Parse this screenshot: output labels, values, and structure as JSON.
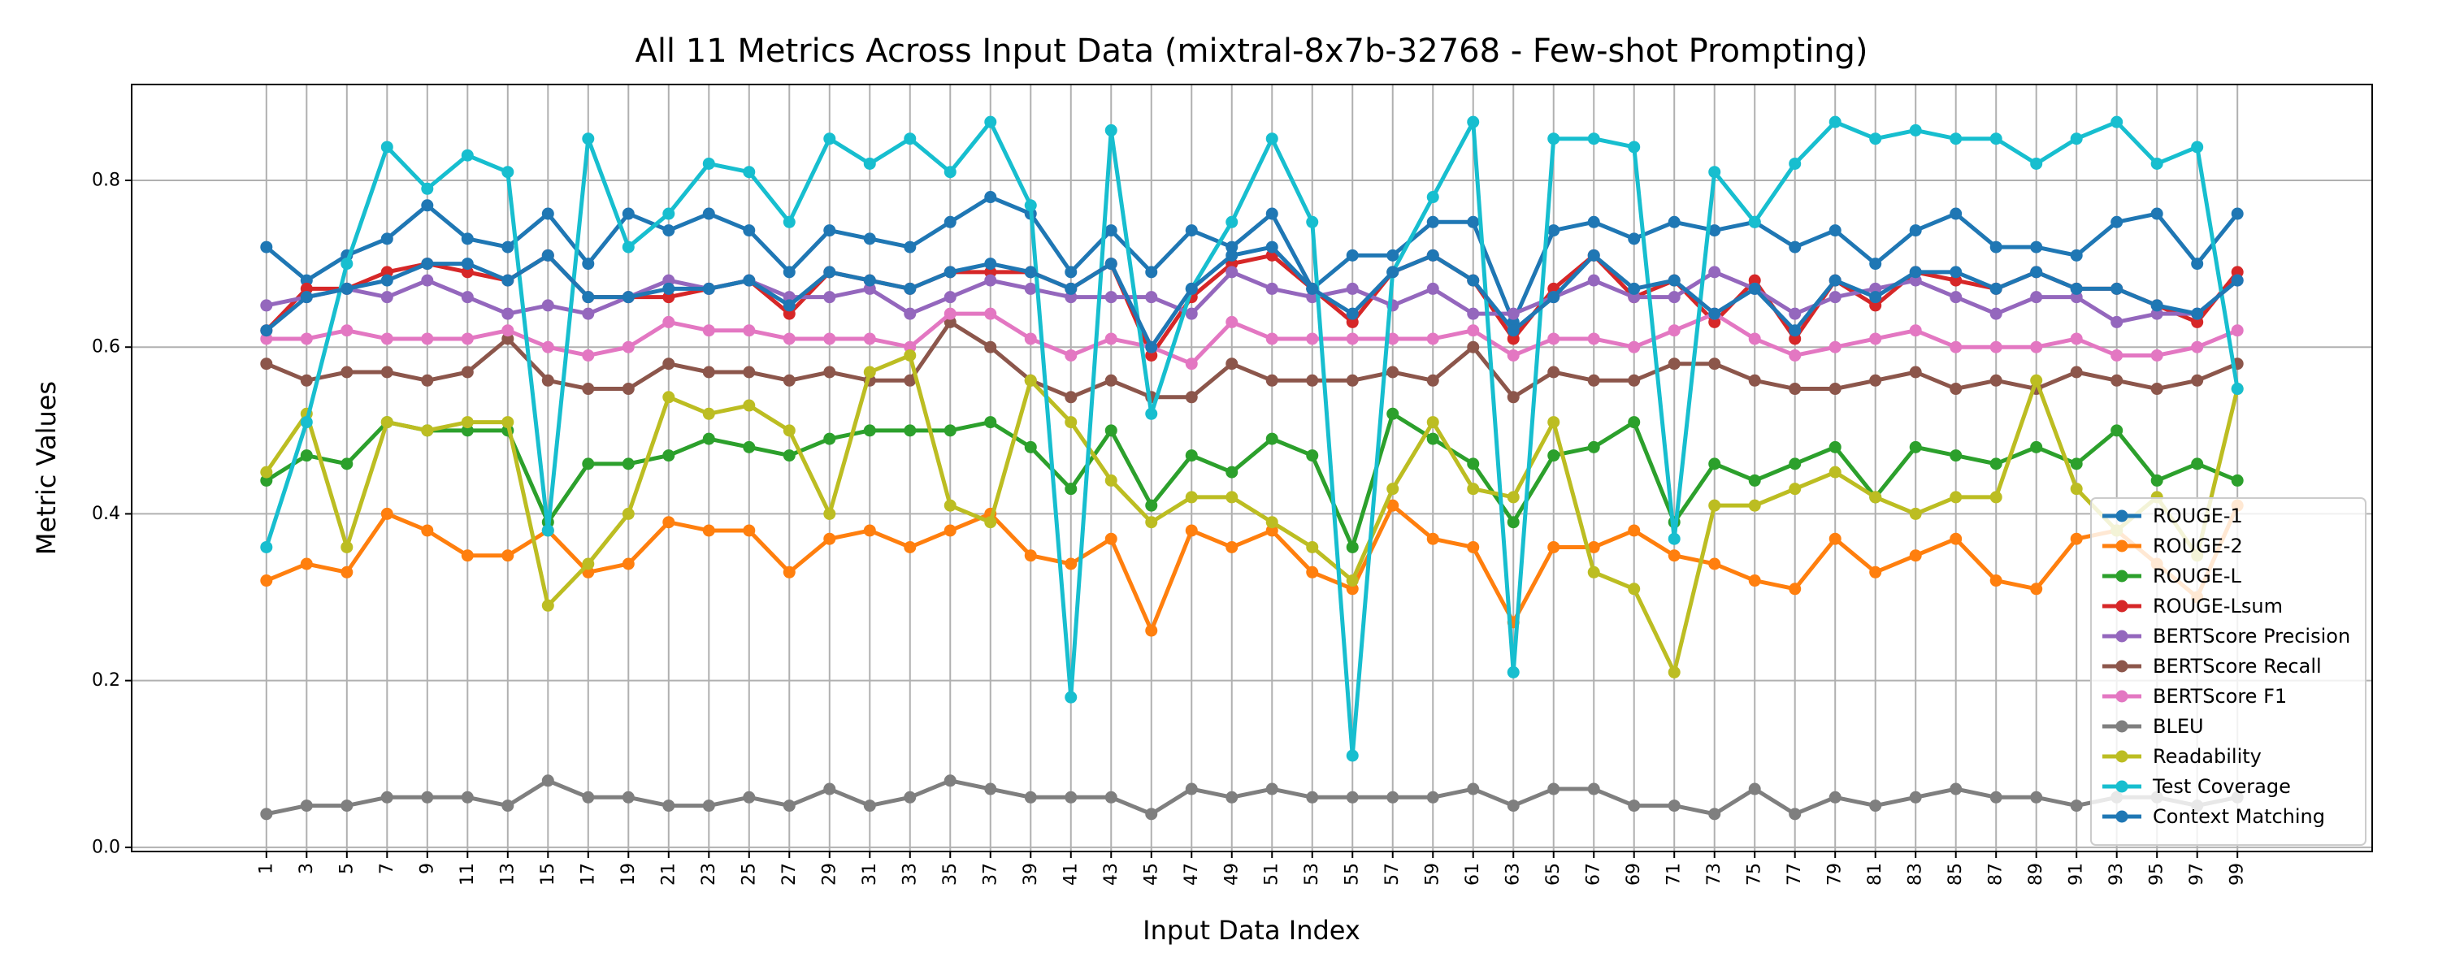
{
  "chart_data": {
    "type": "line",
    "title": "All 11 Metrics Across Input Data (mixtral-8x7b-32768 - Few-shot Prompting)",
    "xlabel": "Input Data Index",
    "ylabel": "Metric Values",
    "x": [
      1,
      3,
      5,
      7,
      9,
      11,
      13,
      15,
      17,
      19,
      21,
      23,
      25,
      27,
      29,
      31,
      33,
      35,
      37,
      39,
      41,
      43,
      45,
      47,
      49,
      51,
      53,
      55,
      57,
      59,
      61,
      63,
      65,
      67,
      69,
      71,
      73,
      75,
      77,
      79,
      81,
      83,
      85,
      87,
      89,
      91,
      93,
      95,
      97,
      99
    ],
    "xticks": [
      "1",
      "3",
      "5",
      "7",
      "9",
      "11",
      "13",
      "15",
      "17",
      "19",
      "21",
      "23",
      "25",
      "27",
      "29",
      "31",
      "33",
      "35",
      "37",
      "39",
      "41",
      "43",
      "45",
      "47",
      "49",
      "51",
      "53",
      "55",
      "57",
      "59",
      "61",
      "63",
      "65",
      "67",
      "69",
      "71",
      "73",
      "75",
      "77",
      "79",
      "81",
      "83",
      "85",
      "87",
      "89",
      "91",
      "93",
      "95",
      "97",
      "99"
    ],
    "ylim": [
      -0.005,
      0.915
    ],
    "yticks": [
      0.0,
      0.2,
      0.4,
      0.6,
      0.8
    ],
    "yticklabels": [
      "0.0",
      "0.2",
      "0.4",
      "0.6",
      "0.8"
    ],
    "grid": true,
    "legend_position": "lower-right",
    "series": [
      {
        "name": "ROUGE-1",
        "color": "#1f77b4",
        "values": [
          0.72,
          0.68,
          0.71,
          0.73,
          0.77,
          0.73,
          0.72,
          0.76,
          0.7,
          0.76,
          0.74,
          0.76,
          0.74,
          0.69,
          0.74,
          0.73,
          0.72,
          0.75,
          0.78,
          0.76,
          0.69,
          0.74,
          0.69,
          0.74,
          0.72,
          0.76,
          0.67,
          0.71,
          0.71,
          0.75,
          0.75,
          0.63,
          0.74,
          0.75,
          0.73,
          0.75,
          0.74,
          0.75,
          0.72,
          0.74,
          0.7,
          0.74,
          0.76,
          0.72,
          0.72,
          0.71,
          0.75,
          0.76,
          0.7,
          0.76
        ]
      },
      {
        "name": "ROUGE-2",
        "color": "#ff7f0e",
        "values": [
          0.32,
          0.34,
          0.33,
          0.4,
          0.38,
          0.35,
          0.35,
          0.38,
          0.33,
          0.34,
          0.39,
          0.38,
          0.38,
          0.33,
          0.37,
          0.38,
          0.36,
          0.38,
          0.4,
          0.35,
          0.34,
          0.37,
          0.26,
          0.38,
          0.36,
          0.38,
          0.33,
          0.31,
          0.41,
          0.37,
          0.36,
          0.27,
          0.36,
          0.36,
          0.38,
          0.35,
          0.34,
          0.32,
          0.31,
          0.37,
          0.33,
          0.35,
          0.37,
          0.32,
          0.31,
          0.37,
          0.38,
          0.34,
          0.3,
          0.41
        ]
      },
      {
        "name": "ROUGE-L",
        "color": "#2ca02c",
        "values": [
          0.44,
          0.47,
          0.46,
          0.51,
          0.5,
          0.5,
          0.5,
          0.39,
          0.46,
          0.46,
          0.47,
          0.49,
          0.48,
          0.47,
          0.49,
          0.5,
          0.5,
          0.5,
          0.51,
          0.48,
          0.43,
          0.5,
          0.41,
          0.47,
          0.45,
          0.49,
          0.47,
          0.36,
          0.52,
          0.49,
          0.46,
          0.39,
          0.47,
          0.48,
          0.51,
          0.39,
          0.46,
          0.44,
          0.46,
          0.48,
          0.42,
          0.48,
          0.47,
          0.46,
          0.48,
          0.46,
          0.5,
          0.44,
          0.46,
          0.44
        ]
      },
      {
        "name": "ROUGE-Lsum",
        "color": "#d62728",
        "values": [
          0.62,
          0.67,
          0.67,
          0.69,
          0.7,
          0.69,
          0.68,
          0.71,
          0.66,
          0.66,
          0.66,
          0.67,
          0.68,
          0.64,
          0.69,
          0.68,
          0.67,
          0.69,
          0.69,
          0.69,
          0.67,
          0.7,
          0.59,
          0.66,
          0.7,
          0.71,
          0.67,
          0.63,
          0.69,
          0.71,
          0.68,
          0.61,
          0.67,
          0.71,
          0.66,
          0.68,
          0.63,
          0.68,
          0.61,
          0.68,
          0.65,
          0.69,
          0.68,
          0.67,
          0.69,
          0.67,
          0.67,
          0.65,
          0.63,
          0.69
        ]
      },
      {
        "name": "BERTScore Precision",
        "color": "#9467bd",
        "values": [
          0.65,
          0.66,
          0.67,
          0.66,
          0.68,
          0.66,
          0.64,
          0.65,
          0.64,
          0.66,
          0.68,
          0.67,
          0.68,
          0.66,
          0.66,
          0.67,
          0.64,
          0.66,
          0.68,
          0.67,
          0.66,
          0.66,
          0.66,
          0.64,
          0.69,
          0.67,
          0.66,
          0.67,
          0.65,
          0.67,
          0.64,
          0.64,
          0.66,
          0.68,
          0.66,
          0.66,
          0.69,
          0.67,
          0.64,
          0.66,
          0.67,
          0.68,
          0.66,
          0.64,
          0.66,
          0.66,
          0.63,
          0.64,
          0.64,
          0.68
        ]
      },
      {
        "name": "BERTScore Recall",
        "color": "#8c564b",
        "values": [
          0.58,
          0.56,
          0.57,
          0.57,
          0.56,
          0.57,
          0.61,
          0.56,
          0.55,
          0.55,
          0.58,
          0.57,
          0.57,
          0.56,
          0.57,
          0.56,
          0.56,
          0.63,
          0.6,
          0.56,
          0.54,
          0.56,
          0.54,
          0.54,
          0.58,
          0.56,
          0.56,
          0.56,
          0.57,
          0.56,
          0.6,
          0.54,
          0.57,
          0.56,
          0.56,
          0.58,
          0.58,
          0.56,
          0.55,
          0.55,
          0.56,
          0.57,
          0.55,
          0.56,
          0.55,
          0.57,
          0.56,
          0.55,
          0.56,
          0.58
        ]
      },
      {
        "name": "BERTScore F1",
        "color": "#e377c2",
        "values": [
          0.61,
          0.61,
          0.62,
          0.61,
          0.61,
          0.61,
          0.62,
          0.6,
          0.59,
          0.6,
          0.63,
          0.62,
          0.62,
          0.61,
          0.61,
          0.61,
          0.6,
          0.64,
          0.64,
          0.61,
          0.59,
          0.61,
          0.6,
          0.58,
          0.63,
          0.61,
          0.61,
          0.61,
          0.61,
          0.61,
          0.62,
          0.59,
          0.61,
          0.61,
          0.6,
          0.62,
          0.64,
          0.61,
          0.59,
          0.6,
          0.61,
          0.62,
          0.6,
          0.6,
          0.6,
          0.61,
          0.59,
          0.59,
          0.6,
          0.62
        ]
      },
      {
        "name": "BLEU",
        "color": "#7f7f7f",
        "values": [
          0.04,
          0.05,
          0.05,
          0.06,
          0.06,
          0.06,
          0.05,
          0.08,
          0.06,
          0.06,
          0.05,
          0.05,
          0.06,
          0.05,
          0.07,
          0.05,
          0.06,
          0.08,
          0.07,
          0.06,
          0.06,
          0.06,
          0.04,
          0.07,
          0.06,
          0.07,
          0.06,
          0.06,
          0.06,
          0.06,
          0.07,
          0.05,
          0.07,
          0.07,
          0.05,
          0.05,
          0.04,
          0.07,
          0.04,
          0.06,
          0.05,
          0.06,
          0.07,
          0.06,
          0.06,
          0.05,
          0.06,
          0.06,
          0.05,
          0.06
        ]
      },
      {
        "name": "Readability",
        "color": "#bcbd22",
        "values": [
          0.45,
          0.52,
          0.36,
          0.51,
          0.5,
          0.51,
          0.51,
          0.29,
          0.34,
          0.4,
          0.54,
          0.52,
          0.53,
          0.5,
          0.4,
          0.57,
          0.59,
          0.41,
          0.39,
          0.56,
          0.51,
          0.44,
          0.39,
          0.42,
          0.42,
          0.39,
          0.36,
          0.32,
          0.43,
          0.51,
          0.43,
          0.42,
          0.51,
          0.33,
          0.31,
          0.21,
          0.41,
          0.41,
          0.43,
          0.45,
          0.42,
          0.4,
          0.42,
          0.42,
          0.56,
          0.43,
          0.38,
          0.42,
          0.35,
          0.55
        ]
      },
      {
        "name": "Test Coverage",
        "color": "#17becf",
        "values": [
          0.36,
          0.51,
          0.7,
          0.84,
          0.79,
          0.83,
          0.81,
          0.38,
          0.85,
          0.72,
          0.76,
          0.82,
          0.81,
          0.75,
          0.85,
          0.82,
          0.85,
          0.81,
          0.87,
          0.77,
          0.18,
          0.86,
          0.52,
          0.67,
          0.75,
          0.85,
          0.75,
          0.11,
          0.69,
          0.78,
          0.87,
          0.21,
          0.85,
          0.85,
          0.84,
          0.37,
          0.81,
          0.75,
          0.82,
          0.87,
          0.85,
          0.86,
          0.85,
          0.85,
          0.82,
          0.85,
          0.87,
          0.82,
          0.84,
          0.55
        ]
      },
      {
        "name": "Context Matching",
        "color": "#1f77b4",
        "values": [
          0.62,
          0.66,
          0.67,
          0.68,
          0.7,
          0.7,
          0.68,
          0.71,
          0.66,
          0.66,
          0.67,
          0.67,
          0.68,
          0.65,
          0.69,
          0.68,
          0.67,
          0.69,
          0.7,
          0.69,
          0.67,
          0.7,
          0.6,
          0.67,
          0.71,
          0.72,
          0.67,
          0.64,
          0.69,
          0.71,
          0.68,
          0.62,
          0.66,
          0.71,
          0.67,
          0.68,
          0.64,
          0.67,
          0.62,
          0.68,
          0.66,
          0.69,
          0.69,
          0.67,
          0.69,
          0.67,
          0.67,
          0.65,
          0.64,
          0.68
        ]
      }
    ]
  }
}
